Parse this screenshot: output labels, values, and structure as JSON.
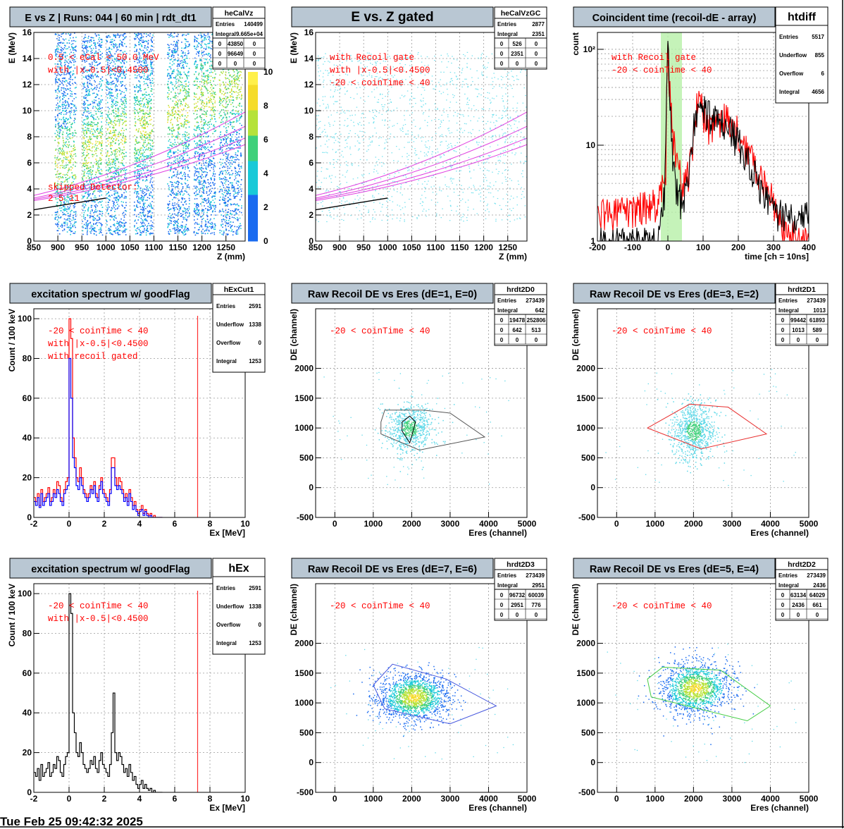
{
  "footer": "Tue Feb 25 09:42:32 2025",
  "chart_data": [
    {
      "id": "heCalVz",
      "type": "heatmap",
      "title": "E vs Z | Runs: 044 | 60 min | rdt_dt1",
      "xlabel": "Z (mm)",
      "ylabel": "E (MeV)",
      "xlim": [
        850,
        1290
      ],
      "ylim": [
        0,
        16
      ],
      "xticks": [
        850,
        900,
        950,
        1000,
        1050,
        1100,
        1150,
        1200,
        1250
      ],
      "yticks": [
        0,
        2,
        4,
        6,
        8,
        10,
        12,
        14,
        16
      ],
      "colorbar": {
        "range": [
          0,
          10
        ],
        "ticks": [
          0,
          2,
          4,
          6,
          8,
          10
        ]
      },
      "stats_box": {
        "name": "heCalVz",
        "rows": [
          [
            "Entries",
            "140499"
          ],
          [
            "Integral",
            "9.665e+04"
          ]
        ],
        "grid": [
          [
            "0",
            "43850",
            "0"
          ],
          [
            "0",
            "96649",
            "0"
          ],
          [
            "0",
            "0",
            "0"
          ]
        ]
      },
      "annotations": [
        "0.5 < eCal < 50.0 MeV",
        "with |x-0.5|<0.4500",
        "skipped Detector:",
        "2  5  11"
      ],
      "detector_bands": [
        [
          893,
          937
        ],
        [
          950,
          992
        ],
        [
          1000,
          1042
        ],
        [
          1058,
          1097
        ],
        [
          1127,
          1173
        ],
        [
          1182,
          1228
        ],
        [
          1235,
          1282
        ]
      ],
      "grid": true
    },
    {
      "id": "heCalVzGC",
      "type": "heatmap",
      "title": "E vs. Z gated",
      "xlabel": "Z (mm)",
      "ylabel": "E (MeV)",
      "xlim": [
        850,
        1290
      ],
      "ylim": [
        0,
        16
      ],
      "xticks": [
        850,
        900,
        950,
        1000,
        1050,
        1100,
        1150,
        1200,
        1250
      ],
      "yticks": [
        0,
        2,
        4,
        6,
        8,
        10,
        12,
        14,
        16
      ],
      "stats_box": {
        "name": "heCalVzGC",
        "rows": [
          [
            "Entries",
            "2877"
          ],
          [
            "Integral",
            "2351"
          ]
        ],
        "grid": [
          [
            "0",
            "526",
            "0"
          ],
          [
            "0",
            "2351",
            "0"
          ],
          [
            "0",
            "0",
            "0"
          ]
        ]
      },
      "annotations": [
        "with Recoil gate",
        "with |x-0.5|<0.4500",
        "-20 < coinTime < 40"
      ],
      "grid": true
    },
    {
      "id": "htdiff",
      "type": "line",
      "title": "Coincident time (recoil-dE - array)",
      "xlabel": "time [ch = 10ns]",
      "ylabel": "count",
      "xlim": [
        -200,
        400
      ],
      "ylim": [
        1,
        150
      ],
      "log_y": true,
      "xticks": [
        -200,
        -100,
        0,
        100,
        200,
        300,
        400
      ],
      "yticks_labels": [
        {
          "v": 1,
          "t": "1"
        },
        {
          "v": 10,
          "t": "10"
        },
        {
          "v": 100,
          "t": "10²"
        }
      ],
      "gate": [
        -20,
        40
      ],
      "stats_box": {
        "name": "htdiff",
        "rows": [
          [
            "Entries",
            "5517"
          ],
          [
            "Underflow",
            "855"
          ],
          [
            "Overflow",
            "6"
          ],
          [
            "Integral",
            "4656"
          ]
        ]
      },
      "annotations": [
        "with Recoil gate",
        "-20 < coinTime < 40"
      ],
      "series": [
        {
          "color": "#ff0000",
          "x": [
            -200,
            -150,
            -100,
            -60,
            -40,
            -20,
            -5,
            0,
            5,
            10,
            20,
            40,
            60,
            70,
            80,
            90,
            100,
            120,
            140,
            160,
            180,
            200,
            220,
            240,
            260,
            280,
            300,
            320,
            340,
            400
          ],
          "y": [
            2,
            2,
            2.2,
            2.5,
            2.5,
            3,
            5,
            100,
            40,
            20,
            8,
            4,
            5,
            10,
            25,
            30,
            22,
            15,
            18,
            20,
            17,
            14,
            10,
            7,
            5,
            4,
            2.5,
            1.6,
            1.2,
            1
          ]
        },
        {
          "color": "#000000",
          "x": [
            -40,
            -20,
            -10,
            -5,
            0,
            3,
            6,
            10,
            15,
            20,
            30,
            40,
            60,
            80,
            100,
            140,
            180,
            220,
            260,
            300
          ],
          "y": [
            1,
            1.5,
            3,
            10,
            100,
            60,
            30,
            12,
            6,
            4,
            3,
            2.5,
            5,
            20,
            25,
            18,
            14,
            8,
            4,
            2
          ]
        }
      ],
      "grid": true
    },
    {
      "id": "hExCut1",
      "type": "line",
      "title": "excitation spectrum w/ goodFlag",
      "xlabel": "Ex [MeV]",
      "ylabel": "Count /  100 keV",
      "xlim": [
        -2,
        10
      ],
      "ylim": [
        0,
        105
      ],
      "xticks": [
        -2,
        0,
        2,
        4,
        6,
        8,
        10
      ],
      "yticks": [
        0,
        20,
        40,
        60,
        80,
        100
      ],
      "marker_x": 7.3,
      "stats_box": {
        "name": "hExCut1",
        "rows": [
          [
            "Entries",
            "2591"
          ],
          [
            "Underflow",
            "1338"
          ],
          [
            "Overflow",
            "0"
          ],
          [
            "Integral",
            "1253"
          ]
        ]
      },
      "annotations": [
        "-20 < coinTime < 40",
        "with |x-0.5|<0.4500",
        "with recoil gated"
      ],
      "bin_width": 0.1,
      "x0": -2,
      "series": [
        {
          "color": "#ff0000",
          "values": [
            10,
            8,
            12,
            6,
            14,
            8,
            10,
            12,
            15,
            8,
            10,
            14,
            12,
            18,
            16,
            10,
            8,
            14,
            18,
            20,
            100,
            90,
            40,
            30,
            20,
            18,
            25,
            20,
            14,
            12,
            10,
            12,
            16,
            14,
            18,
            12,
            10,
            16,
            20,
            14,
            12,
            10,
            8,
            14,
            30,
            30,
            20,
            16,
            20,
            18,
            14,
            10,
            12,
            8,
            14,
            10,
            6,
            8,
            4,
            2,
            4,
            6,
            2,
            4,
            2,
            1,
            2,
            0,
            1,
            0,
            0,
            0,
            0
          ]
        },
        {
          "color": "#0000ff",
          "values": [
            8,
            6,
            10,
            5,
            12,
            6,
            8,
            10,
            12,
            6,
            8,
            12,
            10,
            14,
            12,
            8,
            6,
            12,
            14,
            16,
            80,
            60,
            30,
            25,
            16,
            14,
            20,
            16,
            12,
            10,
            8,
            10,
            14,
            12,
            16,
            10,
            8,
            14,
            18,
            12,
            10,
            8,
            6,
            12,
            25,
            25,
            16,
            14,
            16,
            14,
            12,
            8,
            10,
            6,
            12,
            8,
            4,
            6,
            3,
            1,
            3,
            4,
            1,
            3,
            1,
            0,
            1,
            0,
            0,
            0,
            0,
            0,
            0
          ]
        }
      ],
      "grid": true
    },
    {
      "id": "hrdt2D0",
      "type": "scatter",
      "title": "Raw Recoil DE vs Eres (dE=1, E=0)",
      "xlabel": "Eres (channel)",
      "ylabel": "DE (channel)",
      "xlim": [
        -500,
        5000
      ],
      "ylim": [
        -500,
        3000
      ],
      "xticks": [
        0,
        1000,
        2000,
        3000,
        4000,
        5000
      ],
      "yticks": [
        -500,
        0,
        500,
        1000,
        1500,
        2000
      ],
      "stats_box": {
        "name": "hrdt2D0",
        "rows": [
          [
            "Entries",
            "273439"
          ],
          [
            "Integral",
            "642"
          ]
        ],
        "grid": [
          [
            "0",
            "19478",
            "252806"
          ],
          [
            "0",
            "642",
            "513"
          ],
          [
            "0",
            "0",
            "0"
          ]
        ]
      },
      "annotations": [
        "-20 < coinTime < 40"
      ],
      "cluster": {
        "cx": 1950,
        "cy": 1000,
        "sx": 300,
        "sy": 200,
        "n": 700
      },
      "cuts": [
        {
          "color": "#555555",
          "points": [
            [
              1200,
              1100
            ],
            [
              1300,
              1300
            ],
            [
              2300,
              1300
            ],
            [
              3000,
              1250
            ],
            [
              3900,
              850
            ],
            [
              2200,
              630
            ],
            [
              1200,
              900
            ],
            [
              1200,
              1100
            ]
          ]
        },
        {
          "color": "#000000",
          "points": [
            [
              1750,
              1100
            ],
            [
              1950,
              1200
            ],
            [
              2100,
              1100
            ],
            [
              1950,
              750
            ],
            [
              1750,
              950
            ],
            [
              1750,
              1100
            ]
          ]
        }
      ],
      "grid": true
    },
    {
      "id": "hrdt2D1",
      "type": "scatter",
      "title": "Raw Recoil DE vs Eres (dE=3, E=2)",
      "xlabel": "Eres (channel)",
      "ylabel": "DE (channel)",
      "xlim": [
        -500,
        5000
      ],
      "ylim": [
        -500,
        3000
      ],
      "xticks": [
        0,
        1000,
        2000,
        3000,
        4000,
        5000
      ],
      "yticks": [
        -500,
        0,
        500,
        1000,
        1500,
        2000
      ],
      "stats_box": {
        "name": "hrdt2D1",
        "rows": [
          [
            "Entries",
            "273439"
          ],
          [
            "Integral",
            "1013"
          ]
        ],
        "grid": [
          [
            "0",
            "99442",
            "61893"
          ],
          [
            "0",
            "1013",
            "589"
          ],
          [
            "0",
            "0",
            "0"
          ]
        ]
      },
      "annotations": [
        "-20 < coinTime < 40"
      ],
      "cluster": {
        "cx": 2000,
        "cy": 960,
        "sx": 280,
        "sy": 250,
        "n": 800
      },
      "cuts": [
        {
          "color": "#e83030",
          "points": [
            [
              800,
              1000
            ],
            [
              1900,
              1400
            ],
            [
              2900,
              1350
            ],
            [
              3900,
              900
            ],
            [
              2200,
              650
            ],
            [
              800,
              1000
            ]
          ]
        }
      ],
      "grid": true
    },
    {
      "id": "hEx",
      "type": "line",
      "title": "excitation spectrum w/ goodFlag",
      "xlabel": "Ex [MeV]",
      "ylabel": "Count /  100 keV",
      "xlim": [
        -2,
        10
      ],
      "ylim": [
        0,
        105
      ],
      "xticks": [
        -2,
        0,
        2,
        4,
        6,
        8,
        10
      ],
      "yticks": [
        0,
        20,
        40,
        60,
        80,
        100
      ],
      "marker_x": 7.3,
      "stats_box": {
        "name": "hEx",
        "rows": [
          [
            "Entries",
            "2591"
          ],
          [
            "Underflow",
            "1338"
          ],
          [
            "Overflow",
            "0"
          ],
          [
            "Integral",
            "1253"
          ]
        ]
      },
      "annotations": [
        "-20 < coinTime < 40",
        "with |x-0.5|<0.4500"
      ],
      "bin_width": 0.1,
      "x0": -2,
      "series": [
        {
          "color": "#000000",
          "values": [
            10,
            8,
            12,
            6,
            14,
            8,
            10,
            12,
            15,
            8,
            10,
            14,
            12,
            18,
            16,
            10,
            8,
            14,
            18,
            20,
            100,
            90,
            40,
            30,
            20,
            18,
            25,
            20,
            14,
            12,
            10,
            12,
            16,
            14,
            18,
            12,
            10,
            16,
            20,
            14,
            12,
            10,
            8,
            14,
            30,
            50,
            20,
            16,
            20,
            18,
            14,
            10,
            12,
            8,
            14,
            10,
            6,
            8,
            4,
            2,
            4,
            6,
            2,
            4,
            2,
            1,
            2,
            0,
            1,
            0,
            0,
            0,
            0
          ]
        }
      ],
      "grid": true
    },
    {
      "id": "hrdt2D3",
      "type": "scatter",
      "title": "Raw Recoil DE vs Eres (dE=7, E=6)",
      "xlabel": "Eres (channel)",
      "ylabel": "DE (channel)",
      "xlim": [
        -500,
        5000
      ],
      "ylim": [
        -500,
        3000
      ],
      "xticks": [
        0,
        1000,
        2000,
        3000,
        4000,
        5000
      ],
      "yticks": [
        -500,
        0,
        500,
        1000,
        1500,
        2000
      ],
      "stats_box": {
        "name": "hrdt2D3",
        "rows": [
          [
            "Entries",
            "273439"
          ],
          [
            "Integral",
            "2951"
          ]
        ],
        "grid": [
          [
            "0",
            "96732",
            "60039"
          ],
          [
            "0",
            "2951",
            "776"
          ],
          [
            "0",
            "0",
            "0"
          ]
        ]
      },
      "annotations": [
        "-20 < coinTime < 40"
      ],
      "cluster": {
        "cx": 2050,
        "cy": 1100,
        "sx": 450,
        "sy": 200,
        "n": 1500
      },
      "cuts": [
        {
          "color": "#4455dd",
          "points": [
            [
              1000,
              1300
            ],
            [
              1500,
              1650
            ],
            [
              2900,
              1400
            ],
            [
              4200,
              950
            ],
            [
              3000,
              650
            ],
            [
              1300,
              900
            ],
            [
              1000,
              1300
            ]
          ]
        }
      ],
      "grid": true
    },
    {
      "id": "hrdt2D2",
      "type": "scatter",
      "title": "Raw Recoil DE vs Eres (dE=5, E=4)",
      "xlabel": "Eres (channel)",
      "ylabel": "DE (channel)",
      "xlim": [
        -500,
        5000
      ],
      "ylim": [
        -500,
        3000
      ],
      "xticks": [
        0,
        1000,
        2000,
        3000,
        4000,
        5000
      ],
      "yticks": [
        -500,
        0,
        500,
        1000,
        1500,
        2000
      ],
      "stats_box": {
        "name": "hrdt2D2",
        "rows": [
          [
            "Entries",
            "273439"
          ],
          [
            "Integral",
            "2436"
          ]
        ],
        "grid": [
          [
            "0",
            "63134",
            "64029"
          ],
          [
            "0",
            "2436",
            "661"
          ],
          [
            "0",
            "0",
            "0"
          ]
        ]
      },
      "annotations": [
        "-20 < coinTime < 40"
      ],
      "cluster": {
        "cx": 2050,
        "cy": 1250,
        "sx": 450,
        "sy": 220,
        "n": 1400
      },
      "cuts": [
        {
          "color": "#44cc44",
          "points": [
            [
              800,
              1400
            ],
            [
              1200,
              1600
            ],
            [
              2700,
              1550
            ],
            [
              4000,
              950
            ],
            [
              3400,
              700
            ],
            [
              900,
              1100
            ],
            [
              800,
              1400
            ]
          ]
        }
      ],
      "grid": true
    }
  ]
}
